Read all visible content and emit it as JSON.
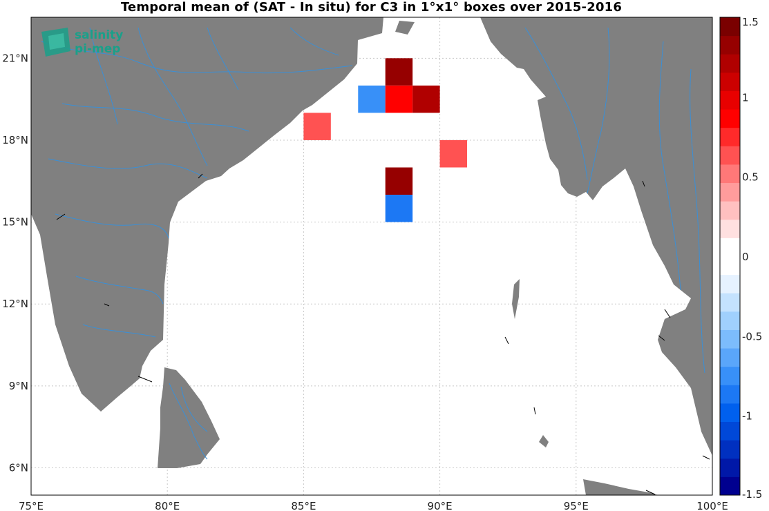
{
  "title": "Temporal mean of (SAT - In situ) for C3 in 1°x1° boxes over 2015-2016",
  "logo": {
    "line1": "salinity",
    "line2": "pi-mep",
    "color": "#1aa08a"
  },
  "colors": {
    "land": "#808080",
    "river": "#3a8fd6",
    "grid": "#c8c8c8",
    "frame": "#000000"
  },
  "map": {
    "lon_range": [
      75,
      100
    ],
    "lat_range": [
      5,
      22.5
    ],
    "lon_ticks": [
      {
        "value": 75,
        "label": "75°E"
      },
      {
        "value": 80,
        "label": "80°E"
      },
      {
        "value": 85,
        "label": "85°E"
      },
      {
        "value": 90,
        "label": "90°E"
      },
      {
        "value": 95,
        "label": "95°E"
      },
      {
        "value": 100,
        "label": "100°E"
      }
    ],
    "lat_ticks": [
      {
        "value": 6,
        "label": "6°N"
      },
      {
        "value": 9,
        "label": "9°N"
      },
      {
        "value": 12,
        "label": "12°N"
      },
      {
        "value": 15,
        "label": "15°N"
      },
      {
        "value": 18,
        "label": "18°N"
      },
      {
        "value": 21,
        "label": "21°N"
      }
    ]
  },
  "chart_data": {
    "type": "heatmap",
    "cell_size_deg": 1,
    "cells": [
      {
        "lon": 88.5,
        "lat": 20.5,
        "value": 1.3
      },
      {
        "lon": 87.5,
        "lat": 19.5,
        "value": -0.7
      },
      {
        "lon": 88.5,
        "lat": 19.5,
        "value": 0.9
      },
      {
        "lon": 89.5,
        "lat": 19.5,
        "value": 1.2
      },
      {
        "lon": 85.5,
        "lat": 18.5,
        "value": 0.6
      },
      {
        "lon": 90.5,
        "lat": 17.5,
        "value": 0.6
      },
      {
        "lon": 88.5,
        "lat": 16.5,
        "value": 1.3
      },
      {
        "lon": 88.5,
        "lat": 15.5,
        "value": -0.9
      }
    ],
    "colorbar": {
      "min": -1.5,
      "max": 1.5,
      "ticks": [
        {
          "value": 1.5,
          "label": "1.5"
        },
        {
          "value": 1,
          "label": "1"
        },
        {
          "value": 0.5,
          "label": "0.5"
        },
        {
          "value": 0,
          "label": "0"
        },
        {
          "value": -0.5,
          "label": "-0.5"
        },
        {
          "value": -1,
          "label": "-1"
        },
        {
          "value": -1.5,
          "label": "-1.5"
        }
      ],
      "colors": [
        "#00008f",
        "#0018a8",
        "#0030c0",
        "#0048d8",
        "#0060ee",
        "#1c78f4",
        "#3890f8",
        "#5aa6fa",
        "#7cbcfc",
        "#a0d0fd",
        "#c4e2fe",
        "#e6f2ff",
        "#ffffff",
        "#ffffff",
        "#ffe0e0",
        "#ffc0c0",
        "#ff9c9c",
        "#ff7878",
        "#ff5252",
        "#ff2a2a",
        "#ff0000",
        "#e80000",
        "#cc0000",
        "#b00000",
        "#960000",
        "#7a0000"
      ]
    }
  }
}
